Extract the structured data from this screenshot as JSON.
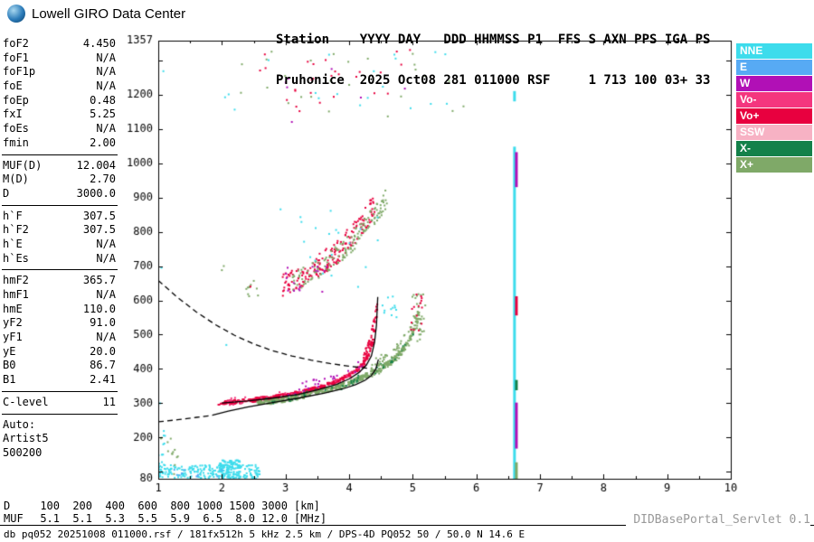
{
  "header": {
    "logo_text": "Lowell GIRO Data Center",
    "station_line1": "Station    YYYY DAY   DDD HHMMSS P1  FFS S AXN PPS IGA PS",
    "station_line2": "Pruhonice  2025 Oct08 281 011000 RSF     1 713 100 03+ 33"
  },
  "params": {
    "groups": [
      {
        "rows": [
          [
            "foF2",
            "4.450"
          ],
          [
            "foF1",
            "N/A"
          ],
          [
            "foF1p",
            "N/A"
          ],
          [
            "foE",
            "N/A"
          ],
          [
            "foEp",
            "0.48"
          ],
          [
            "fxI",
            "5.25"
          ],
          [
            "foEs",
            "N/A"
          ],
          [
            "fmin",
            "2.00"
          ]
        ]
      },
      {
        "rows": [
          [
            "MUF(D)",
            "12.004"
          ],
          [
            "M(D)",
            "2.70"
          ],
          [
            "D",
            "3000.0"
          ]
        ]
      },
      {
        "rows": [
          [
            "h`F",
            "307.5"
          ],
          [
            "h`F2",
            "307.5"
          ],
          [
            "h`E",
            "N/A"
          ],
          [
            "h`Es",
            "N/A"
          ]
        ]
      },
      {
        "rows": [
          [
            "hmF2",
            "365.7"
          ],
          [
            "hmF1",
            "N/A"
          ],
          [
            "hmE",
            "110.0"
          ],
          [
            "yF2",
            "91.0"
          ],
          [
            "yF1",
            "N/A"
          ],
          [
            "yE",
            "20.0"
          ],
          [
            "B0",
            "86.7"
          ],
          [
            "B1",
            "2.41"
          ]
        ]
      },
      {
        "rows": [
          [
            "C-level",
            "11"
          ]
        ]
      }
    ],
    "auto_label": "Auto:",
    "auto_lines": [
      "Artist5",
      "500200"
    ]
  },
  "legend": {
    "items": [
      {
        "label": "NNE",
        "color": "#3ddcec"
      },
      {
        "label": "E",
        "color": "#57aaf4"
      },
      {
        "label": "W",
        "color": "#b110b6"
      },
      {
        "label": "Vo-",
        "color": "#f4367e"
      },
      {
        "label": "Vo+",
        "color": "#e8003f"
      },
      {
        "label": "SSW",
        "color": "#f7b2c4"
      },
      {
        "label": "X-",
        "color": "#13814a"
      },
      {
        "label": "X+",
        "color": "#7fa968"
      }
    ]
  },
  "footer": {
    "dmuf": {
      "d_label": "D",
      "muf_label": "MUF",
      "distances": [
        "100",
        "200",
        "400",
        "600",
        "800",
        "1000",
        "1500",
        "3000"
      ],
      "muf_values": [
        "5.1",
        "5.1",
        "5.3",
        "5.5",
        "5.9",
        "6.5",
        "8.0",
        "12.0"
      ],
      "d_unit": "[km]",
      "muf_unit": "[MHz]"
    },
    "info_row": "db pq052 20251008 011000.rsf / 181fx512h 5 kHz 2.5 km / DPS-4D PQ052 50 / 50.0 N 14.6 E",
    "servlet": "DIDBasePortal_Servlet 0.1"
  },
  "chart_data": {
    "type": "scatter",
    "xlabel": "[MHz]",
    "ylabel": "[km]",
    "xlim": [
      1,
      10
    ],
    "ylim": [
      80,
      1357
    ],
    "x_ticks": [
      1,
      2,
      3,
      4,
      5,
      6,
      7,
      8,
      9,
      10
    ],
    "x_minor_step": 0.5,
    "y_tick_step": 100,
    "y_tick_labels": [
      1357,
      1200,
      1100,
      1000,
      900,
      800,
      700,
      600,
      500,
      400,
      300,
      200,
      80
    ],
    "key_values": {
      "foF2": 4.45,
      "fxI": 5.25,
      "fmin": 2.0,
      "hmF2": 365.7,
      "h_F": 307.5,
      "MUF_3000": 12.004
    },
    "colors": {
      "nne": "#3ddcec",
      "e": "#57aaf4",
      "w": "#b110b6",
      "vo-": "#f4367e",
      "vo+": "#e8003f",
      "ssw": "#f7b2c4",
      "x-": "#13814a",
      "x+": "#7fa968",
      "black": "#000000"
    },
    "clusters": [
      {
        "name": "bottom-noise-cyan",
        "color": "nne",
        "mode": "box",
        "x": [
          1.0,
          2.6
        ],
        "y": [
          80,
          120
        ],
        "count": 220,
        "size": 2
      },
      {
        "name": "bottom-noise-dense",
        "color": "nne",
        "mode": "box",
        "x": [
          1.95,
          2.3
        ],
        "y": [
          80,
          135
        ],
        "count": 70,
        "size": 3
      },
      {
        "name": "bottom-noise-blue",
        "color": "e",
        "mode": "box",
        "x": [
          1.25,
          2.1
        ],
        "y": [
          82,
          108
        ],
        "count": 10,
        "size": 2
      },
      {
        "name": "bottom-left-green",
        "color": "x+",
        "mode": "box",
        "x": [
          1.0,
          1.4
        ],
        "y": [
          85,
          200
        ],
        "count": 12,
        "size": 2
      },
      {
        "name": "left-edge-cyan",
        "color": "nne",
        "mode": "box",
        "x": [
          1.0,
          1.12
        ],
        "y": [
          80,
          235
        ],
        "count": 14,
        "size": 2
      },
      {
        "name": "o-trace",
        "color": "vo+",
        "mode": "band",
        "jitter": 6,
        "count": 300,
        "size": 3,
        "line": [
          [
            1.95,
            300
          ],
          [
            2.3,
            306
          ],
          [
            2.7,
            314
          ],
          [
            3.0,
            323
          ],
          [
            3.3,
            334
          ],
          [
            3.6,
            349
          ],
          [
            3.85,
            367
          ],
          [
            4.05,
            388
          ],
          [
            4.2,
            410
          ],
          [
            4.3,
            438
          ],
          [
            4.38,
            486
          ],
          [
            4.42,
            556
          ],
          [
            4.44,
            605
          ]
        ]
      },
      {
        "name": "o-trace-pink",
        "color": "vo-",
        "mode": "band",
        "jitter": 12,
        "count": 45,
        "size": 2,
        "line": [
          [
            2.1,
            303
          ],
          [
            2.6,
            312
          ],
          [
            3.1,
            326
          ],
          [
            3.5,
            340
          ],
          [
            3.9,
            362
          ],
          [
            4.15,
            395
          ],
          [
            4.3,
            440
          ],
          [
            4.4,
            520
          ]
        ]
      },
      {
        "name": "o-trace-magenta",
        "color": "w",
        "mode": "band",
        "jitter": 15,
        "count": 26,
        "size": 2,
        "line": [
          [
            2.9,
            332
          ],
          [
            3.3,
            347
          ],
          [
            3.6,
            362
          ],
          [
            3.9,
            382
          ],
          [
            4.15,
            408
          ],
          [
            4.3,
            440
          ]
        ]
      },
      {
        "name": "x-trace",
        "color": "x+",
        "mode": "band",
        "jitter": 7,
        "count": 300,
        "size": 3,
        "line": [
          [
            2.55,
            299
          ],
          [
            2.9,
            308
          ],
          [
            3.2,
            318
          ],
          [
            3.5,
            331
          ],
          [
            3.8,
            346
          ],
          [
            4.1,
            365
          ],
          [
            4.35,
            388
          ],
          [
            4.6,
            414
          ],
          [
            4.8,
            444
          ],
          [
            4.95,
            482
          ],
          [
            5.05,
            528
          ],
          [
            5.12,
            578
          ]
        ]
      },
      {
        "name": "x-trace-dark",
        "color": "x-",
        "mode": "band",
        "jitter": 10,
        "count": 45,
        "size": 2,
        "line": [
          [
            2.7,
            305
          ],
          [
            3.1,
            316
          ],
          [
            3.5,
            331
          ],
          [
            3.9,
            350
          ],
          [
            4.3,
            384
          ],
          [
            4.7,
            430
          ],
          [
            5.0,
            500
          ],
          [
            5.1,
            560
          ]
        ]
      },
      {
        "name": "x-cusp-spread",
        "color": "x+",
        "mode": "band",
        "jitter": 26,
        "count": 85,
        "size": 2,
        "line": [
          [
            4.3,
            392
          ],
          [
            4.55,
            420
          ],
          [
            4.8,
            455
          ],
          [
            5.0,
            510
          ],
          [
            5.12,
            570
          ]
        ]
      },
      {
        "name": "o-cusp-spread",
        "color": "vo+",
        "mode": "band",
        "jitter": 22,
        "count": 60,
        "size": 2,
        "line": [
          [
            4.22,
            420
          ],
          [
            4.32,
            465
          ],
          [
            4.4,
            530
          ],
          [
            4.45,
            595
          ]
        ]
      },
      {
        "name": "cusp-cyan",
        "color": "nne",
        "mode": "box",
        "x": [
          4.5,
          4.75
        ],
        "y": [
          535,
          615
        ],
        "count": 12,
        "size": 2
      },
      {
        "name": "spread-f-red",
        "color": "vo+",
        "mode": "band",
        "jitter": 34,
        "count": 190,
        "size": 2,
        "line": [
          [
            2.95,
            640
          ],
          [
            3.2,
            663
          ],
          [
            3.5,
            697
          ],
          [
            3.8,
            738
          ],
          [
            4.05,
            788
          ],
          [
            4.25,
            838
          ],
          [
            4.4,
            878
          ]
        ]
      },
      {
        "name": "spread-f-green",
        "color": "x+",
        "mode": "band",
        "jitter": 30,
        "count": 150,
        "size": 2,
        "line": [
          [
            3.1,
            650
          ],
          [
            3.4,
            680
          ],
          [
            3.7,
            715
          ],
          [
            4.0,
            760
          ],
          [
            4.25,
            814
          ],
          [
            4.45,
            864
          ],
          [
            4.6,
            898
          ]
        ]
      },
      {
        "name": "spread-f-magenta",
        "color": "w",
        "mode": "box",
        "x": [
          3.0,
          3.65
        ],
        "y": [
          618,
          700
        ],
        "count": 16,
        "size": 2
      },
      {
        "name": "spread-f-cyan",
        "color": "nne",
        "mode": "box",
        "x": [
          2.9,
          4.5
        ],
        "y": [
          620,
          900
        ],
        "count": 20,
        "size": 2
      },
      {
        "name": "mid-left-clump",
        "color": "x+",
        "mode": "box",
        "x": [
          2.38,
          2.6
        ],
        "y": [
          612,
          660
        ],
        "count": 10,
        "size": 2
      },
      {
        "name": "high-sprinkle-red",
        "color": "vo+",
        "mode": "box",
        "x": [
          2.6,
          5.0
        ],
        "y": [
          1150,
          1330
        ],
        "count": 26,
        "size": 2
      },
      {
        "name": "high-sprinkle-green",
        "color": "x+",
        "mode": "box",
        "x": [
          2.2,
          5.8
        ],
        "y": [
          1130,
          1330
        ],
        "count": 24,
        "size": 2
      },
      {
        "name": "high-sprinkle-cyan",
        "color": "nne",
        "mode": "box",
        "x": [
          2.1,
          5.8
        ],
        "y": [
          1140,
          1335
        ],
        "count": 18,
        "size": 2
      },
      {
        "name": "high-sprinkle-magenta",
        "color": "w",
        "mode": "box",
        "x": [
          3.0,
          5.0
        ],
        "y": [
          1180,
          1300
        ],
        "count": 6,
        "size": 2
      },
      {
        "name": "5mhz-cluster-green",
        "color": "x+",
        "mode": "box",
        "x": [
          4.95,
          5.2
        ],
        "y": [
          470,
          620
        ],
        "count": 30,
        "size": 2
      },
      {
        "name": "5mhz-cluster-red",
        "color": "vo+",
        "mode": "box",
        "x": [
          4.95,
          5.15
        ],
        "y": [
          490,
          620
        ],
        "count": 15,
        "size": 2
      }
    ],
    "singles": [
      {
        "color": "nne",
        "points": [
          [
            1.03,
            300
          ],
          [
            1.05,
            695
          ],
          [
            1.08,
            1268
          ],
          [
            2.07,
            470
          ],
          [
            2.05,
            1192
          ]
        ]
      },
      {
        "color": "x+",
        "points": [
          [
            2.0,
            688
          ],
          [
            2.03,
            700
          ],
          [
            1.22,
            152
          ],
          [
            2.3,
            1205
          ]
        ]
      },
      {
        "color": "vo+",
        "points": [
          [
            2.45,
            640
          ],
          [
            2.6,
            1270
          ]
        ]
      },
      {
        "color": "w",
        "points": [
          [
            3.1,
            1120
          ]
        ]
      }
    ],
    "columns": [
      {
        "x": 6.6,
        "w": 3,
        "segments": [
          {
            "y": [
              80,
              1048
            ],
            "color": "nne"
          },
          {
            "y": [
              1180,
              1210
            ],
            "color": "nne"
          }
        ]
      },
      {
        "x": 6.63,
        "w": 3,
        "segments": [
          {
            "y": [
              168,
              302
            ],
            "color": "w"
          },
          {
            "y": [
              930,
              1032
            ],
            "color": "w"
          },
          {
            "y": [
              556,
              612
            ],
            "color": "vo+"
          },
          {
            "y": [
              80,
              128
            ],
            "color": "x+"
          },
          {
            "y": [
              338,
              368
            ],
            "color": "x-"
          }
        ]
      }
    ],
    "curves": [
      {
        "name": "muf-transmission-curve",
        "style": "dashed",
        "points": [
          [
            1.0,
            658
          ],
          [
            1.3,
            609
          ],
          [
            1.6,
            566
          ],
          [
            1.9,
            529
          ],
          [
            2.2,
            498
          ],
          [
            2.5,
            473
          ],
          [
            2.8,
            453
          ],
          [
            3.1,
            438
          ],
          [
            3.4,
            426
          ],
          [
            3.7,
            416
          ],
          [
            4.0,
            408
          ],
          [
            4.2,
            404
          ],
          [
            4.33,
            401
          ]
        ]
      },
      {
        "name": "profile-extension",
        "style": "dashed",
        "points": [
          [
            1.0,
            246
          ],
          [
            1.3,
            252
          ],
          [
            1.6,
            259
          ],
          [
            1.85,
            265
          ]
        ]
      },
      {
        "name": "true-height-profile",
        "style": "solid",
        "points": [
          [
            1.85,
            265
          ],
          [
            2.1,
            277
          ],
          [
            2.4,
            289
          ],
          [
            2.8,
            302
          ],
          [
            3.2,
            315
          ],
          [
            3.6,
            329
          ],
          [
            3.9,
            342
          ],
          [
            4.1,
            354
          ],
          [
            4.25,
            367
          ],
          [
            4.35,
            381
          ],
          [
            4.42,
            400
          ],
          [
            4.46,
            428
          ]
        ]
      },
      {
        "name": "o-trace-fit",
        "style": "solid",
        "points": [
          [
            2.0,
            301
          ],
          [
            2.4,
            307
          ],
          [
            2.8,
            315
          ],
          [
            3.2,
            326
          ],
          [
            3.5,
            339
          ],
          [
            3.8,
            355
          ],
          [
            4.0,
            371
          ],
          [
            4.15,
            389
          ],
          [
            4.27,
            411
          ],
          [
            4.35,
            438
          ],
          [
            4.4,
            478
          ],
          [
            4.43,
            528
          ],
          [
            4.45,
            610
          ]
        ]
      }
    ]
  }
}
